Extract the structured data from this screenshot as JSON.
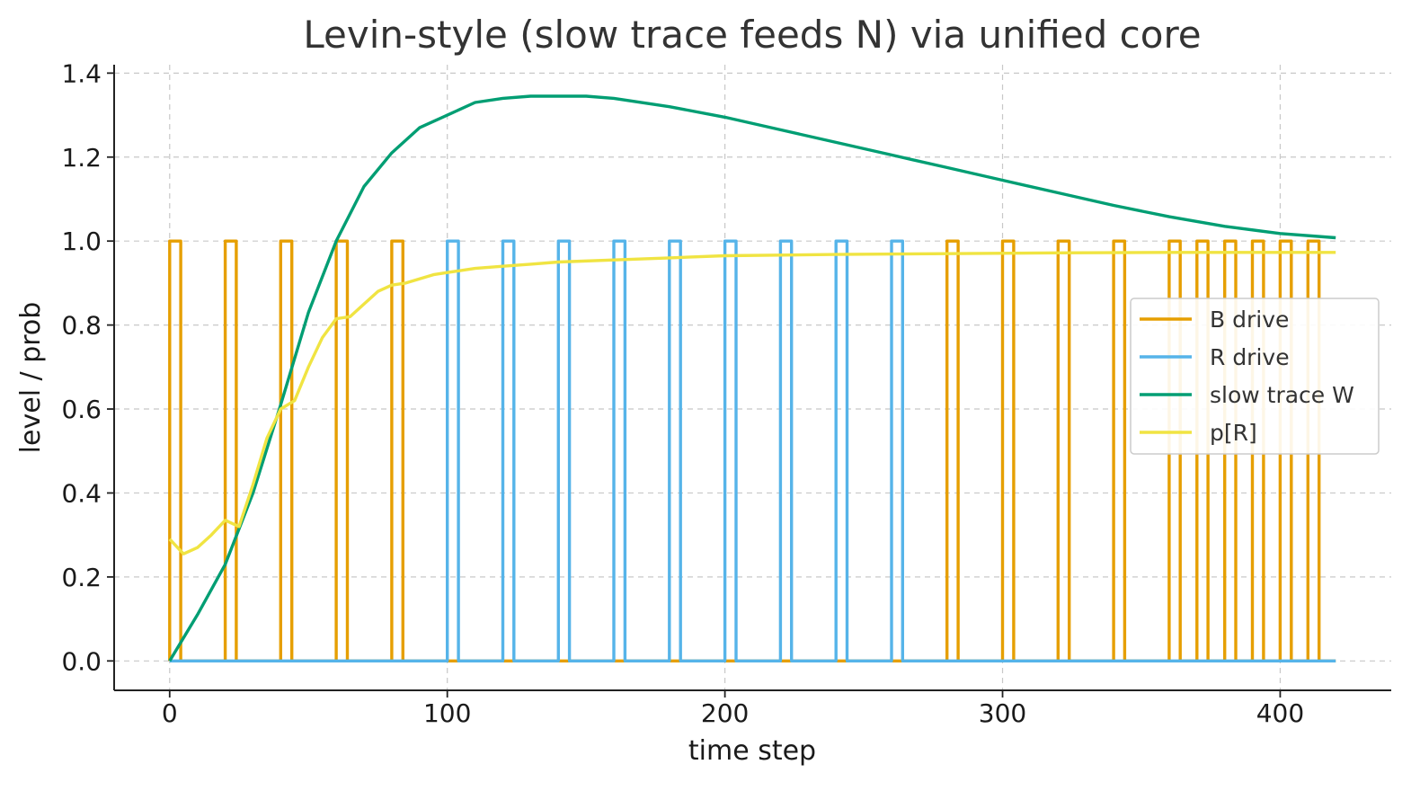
{
  "chart_data": {
    "type": "line",
    "title": "Levin-style (slow trace feeds N) via unified core",
    "xlabel": "time step",
    "ylabel": "level / prob",
    "xlim": [
      -20,
      440
    ],
    "ylim": [
      -0.07,
      1.42
    ],
    "xticks": [
      0,
      100,
      200,
      300,
      400
    ],
    "yticks": [
      0.0,
      0.2,
      0.4,
      0.6,
      0.8,
      1.0,
      1.2,
      1.4
    ],
    "xtick_labels": [
      "0",
      "100",
      "200",
      "300",
      "400"
    ],
    "ytick_labels": [
      "0.0",
      "0.2",
      "0.4",
      "0.6",
      "0.8",
      "1.0",
      "1.2",
      "1.4"
    ],
    "grid": true,
    "legend_position": "center-right",
    "series": [
      {
        "name": "B drive",
        "color": "#E69F00",
        "step": true,
        "pulse_starts": [
          0,
          20,
          40,
          60,
          80,
          280,
          300,
          320,
          340,
          360,
          370,
          380,
          390,
          400,
          410
        ],
        "pulse_width": 4,
        "end": 420
      },
      {
        "name": "R drive",
        "color": "#56B4E9",
        "step": true,
        "pulse_starts": [
          100,
          120,
          140,
          160,
          180,
          200,
          220,
          240,
          260
        ],
        "pulse_width": 4,
        "end": 420
      },
      {
        "name": "slow trace W",
        "color": "#009E73",
        "x": [
          0,
          10,
          20,
          30,
          40,
          50,
          60,
          70,
          80,
          90,
          100,
          110,
          120,
          130,
          140,
          150,
          160,
          180,
          200,
          220,
          240,
          260,
          280,
          300,
          320,
          340,
          360,
          380,
          400,
          420
        ],
        "y": [
          0.0,
          0.11,
          0.23,
          0.4,
          0.61,
          0.83,
          1.0,
          1.13,
          1.21,
          1.27,
          1.3,
          1.33,
          1.34,
          1.345,
          1.345,
          1.345,
          1.34,
          1.32,
          1.295,
          1.265,
          1.235,
          1.205,
          1.175,
          1.145,
          1.115,
          1.085,
          1.058,
          1.035,
          1.018,
          1.008
        ]
      },
      {
        "name": "p[R]",
        "color": "#F0E442",
        "x": [
          0,
          5,
          10,
          15,
          20,
          25,
          30,
          35,
          40,
          45,
          50,
          55,
          60,
          65,
          70,
          75,
          80,
          85,
          90,
          95,
          100,
          110,
          120,
          130,
          140,
          160,
          180,
          200,
          240,
          280,
          320,
          360,
          400,
          420
        ],
        "y": [
          0.29,
          0.255,
          0.27,
          0.3,
          0.335,
          0.32,
          0.42,
          0.53,
          0.6,
          0.62,
          0.7,
          0.77,
          0.815,
          0.82,
          0.85,
          0.88,
          0.895,
          0.9,
          0.91,
          0.92,
          0.925,
          0.935,
          0.94,
          0.945,
          0.95,
          0.955,
          0.96,
          0.965,
          0.968,
          0.97,
          0.972,
          0.973,
          0.973,
          0.973
        ]
      }
    ]
  }
}
